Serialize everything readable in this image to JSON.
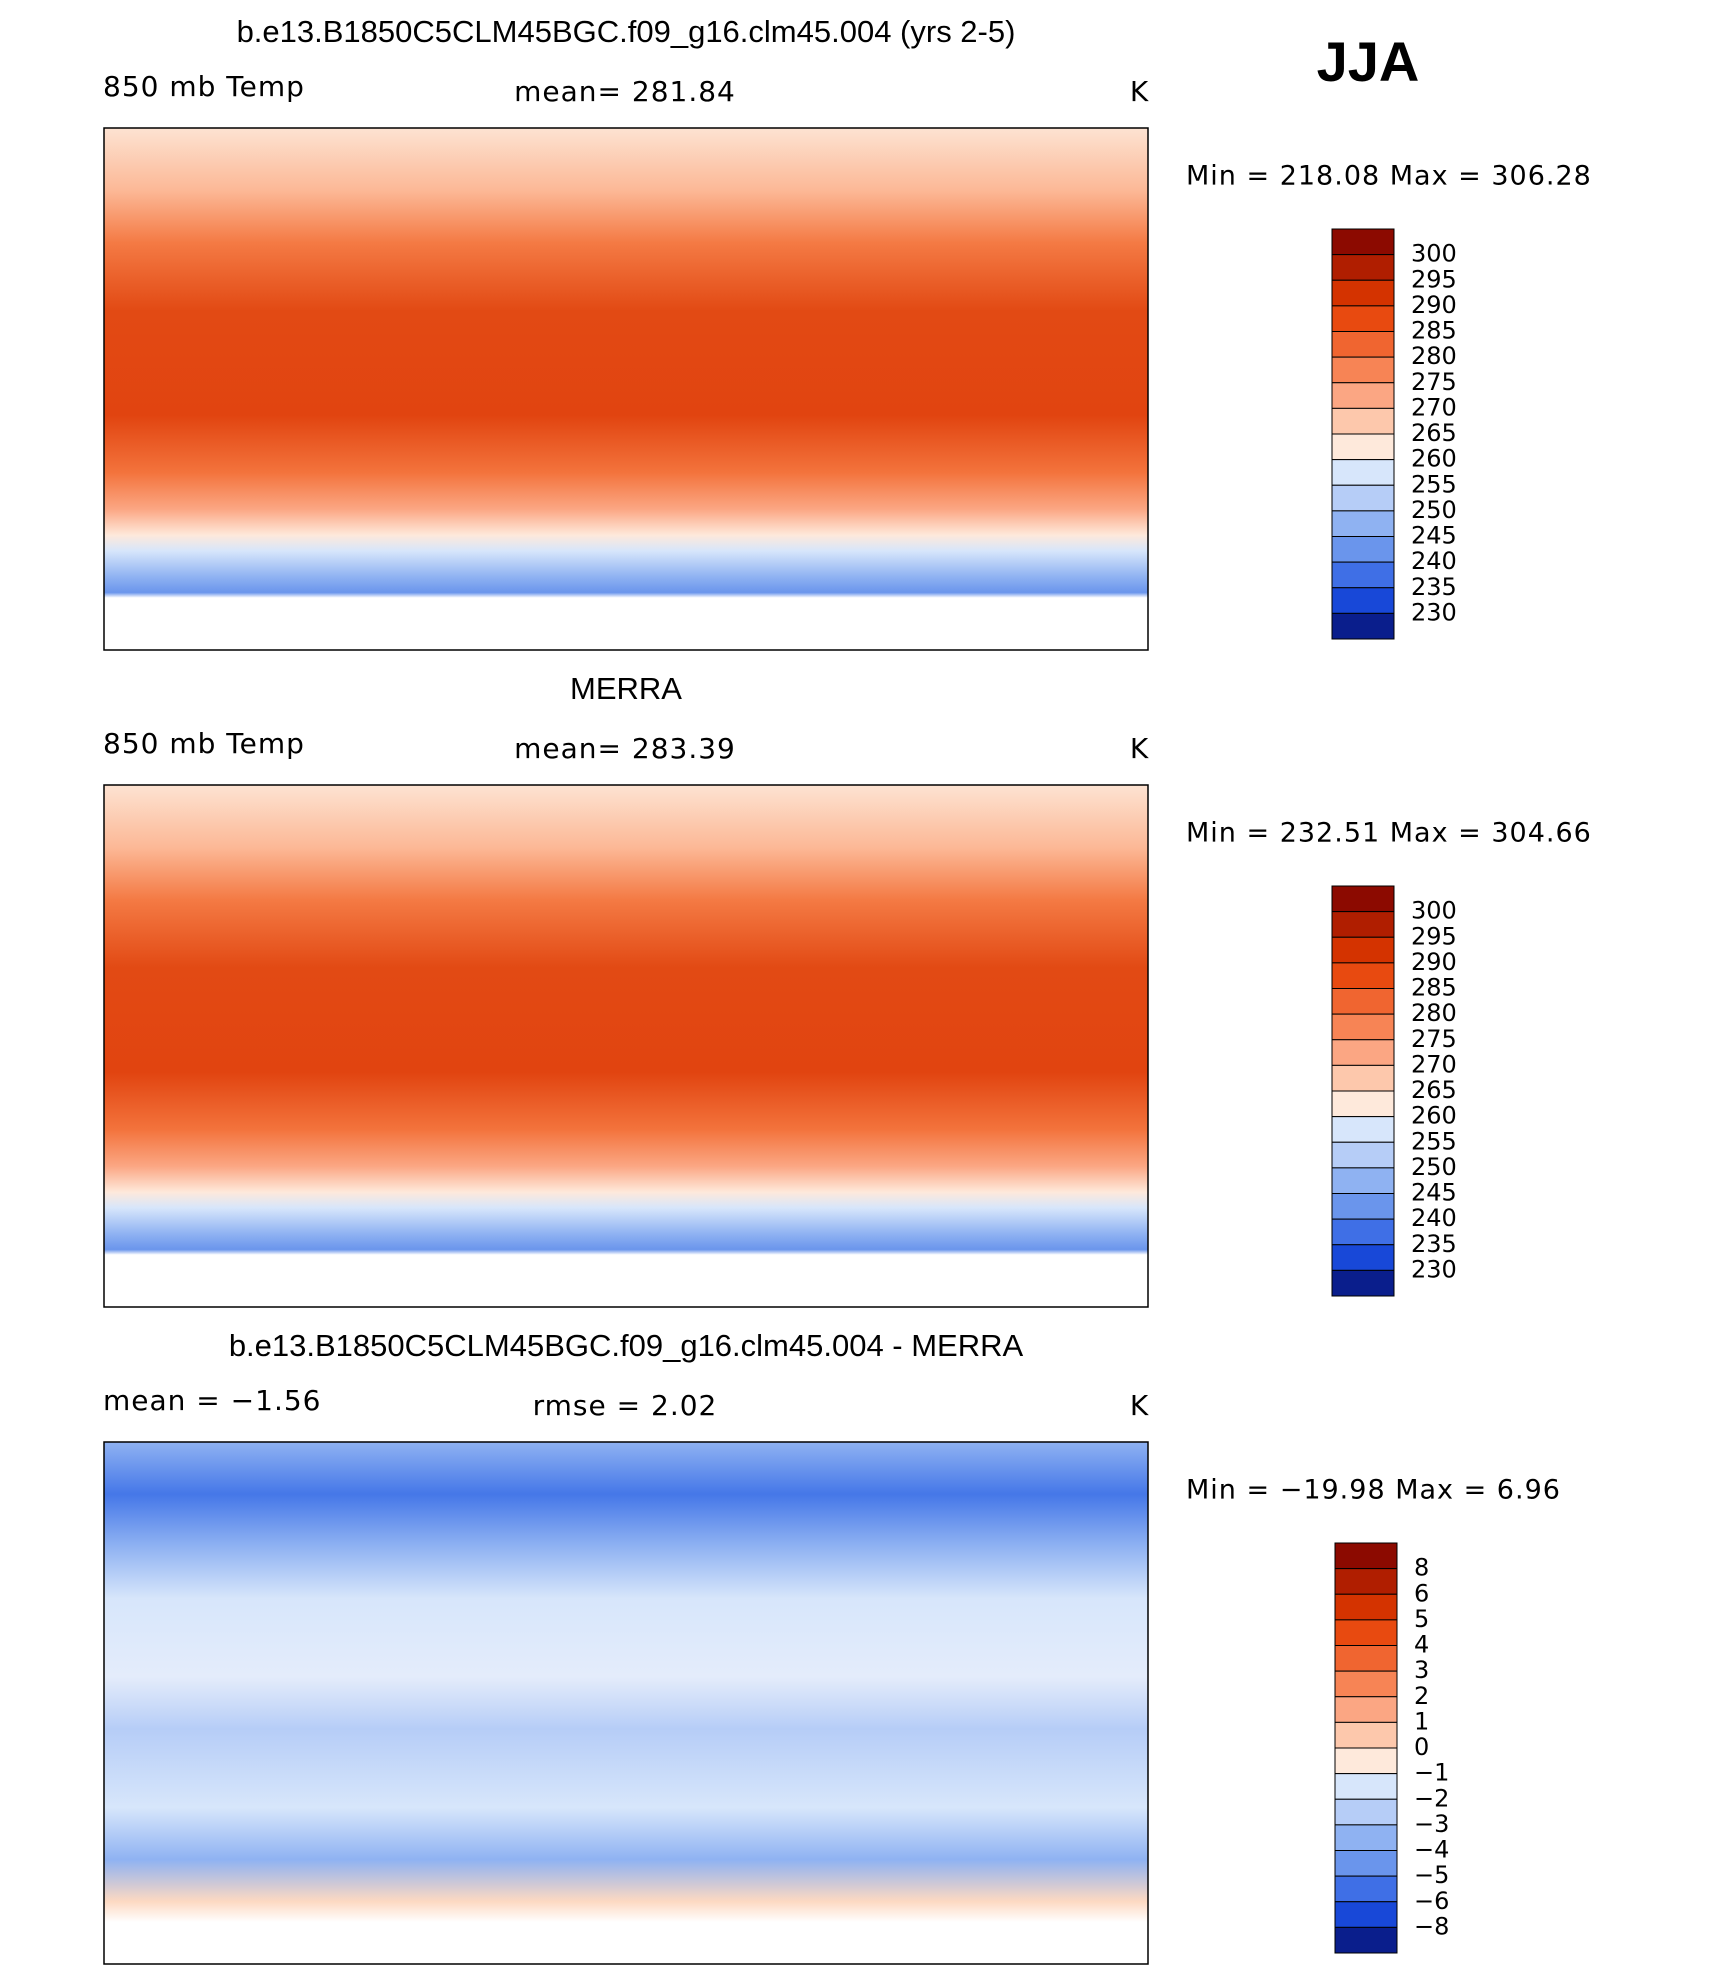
{
  "season": "JJA",
  "panels": [
    {
      "title": "b.e13.B1850C5CLM45BGC.f09_g16.clm45.004 (yrs 2-5)",
      "left_label": "850 mb Temp",
      "center_label": "mean=  281.84",
      "units": "K",
      "min_max": "Min  =  218.08  Max  =  306.28",
      "map_style": "temperature",
      "colorbar": {
        "labels": [
          "300",
          "295",
          "290",
          "285",
          "280",
          "275",
          "270",
          "265",
          "260",
          "255",
          "250",
          "245",
          "240",
          "235",
          "230"
        ],
        "colors": [
          "#8c0a00",
          "#b01e00",
          "#d43300",
          "#e84a10",
          "#f06530",
          "#f78455",
          "#fba683",
          "#fdc8ac",
          "#fee9db",
          "#d7e6fb",
          "#b6cdf7",
          "#8fb2f2",
          "#6a95ec",
          "#3f6fe6",
          "#1848d8",
          "#0a1e8c"
        ]
      }
    },
    {
      "title": "MERRA",
      "left_label": "850 mb Temp",
      "center_label": "mean=  283.39",
      "units": "K",
      "min_max": "Min  =  232.51  Max  =  304.66",
      "map_style": "temperature",
      "colorbar": {
        "labels": [
          "300",
          "295",
          "290",
          "285",
          "280",
          "275",
          "270",
          "265",
          "260",
          "255",
          "250",
          "245",
          "240",
          "235",
          "230"
        ],
        "colors": [
          "#8c0a00",
          "#b01e00",
          "#d43300",
          "#e84a10",
          "#f06530",
          "#f78455",
          "#fba683",
          "#fdc8ac",
          "#fee9db",
          "#d7e6fb",
          "#b6cdf7",
          "#8fb2f2",
          "#6a95ec",
          "#3f6fe6",
          "#1848d8",
          "#0a1e8c"
        ]
      }
    },
    {
      "title": "b.e13.B1850C5CLM45BGC.f09_g16.clm45.004 - MERRA",
      "left_label": "mean =   −1.56",
      "center_label": "rmse =    2.02",
      "units": "K",
      "min_max": "Min  = −19.98  Max  =     6.96",
      "map_style": "difference",
      "colorbar": {
        "labels": [
          "8",
          "6",
          "5",
          "4",
          "3",
          "2",
          "1",
          "0",
          "−1",
          "−2",
          "−3",
          "−4",
          "−5",
          "−6",
          "−8"
        ],
        "colors": [
          "#8c0a00",
          "#b01e00",
          "#d43300",
          "#e84a10",
          "#f06530",
          "#f78455",
          "#fba683",
          "#fdc8ac",
          "#fee9db",
          "#d7e6fb",
          "#b6cdf7",
          "#8fb2f2",
          "#6a95ec",
          "#3f6fe6",
          "#1848d8",
          "#0a1e8c"
        ]
      }
    }
  ]
}
